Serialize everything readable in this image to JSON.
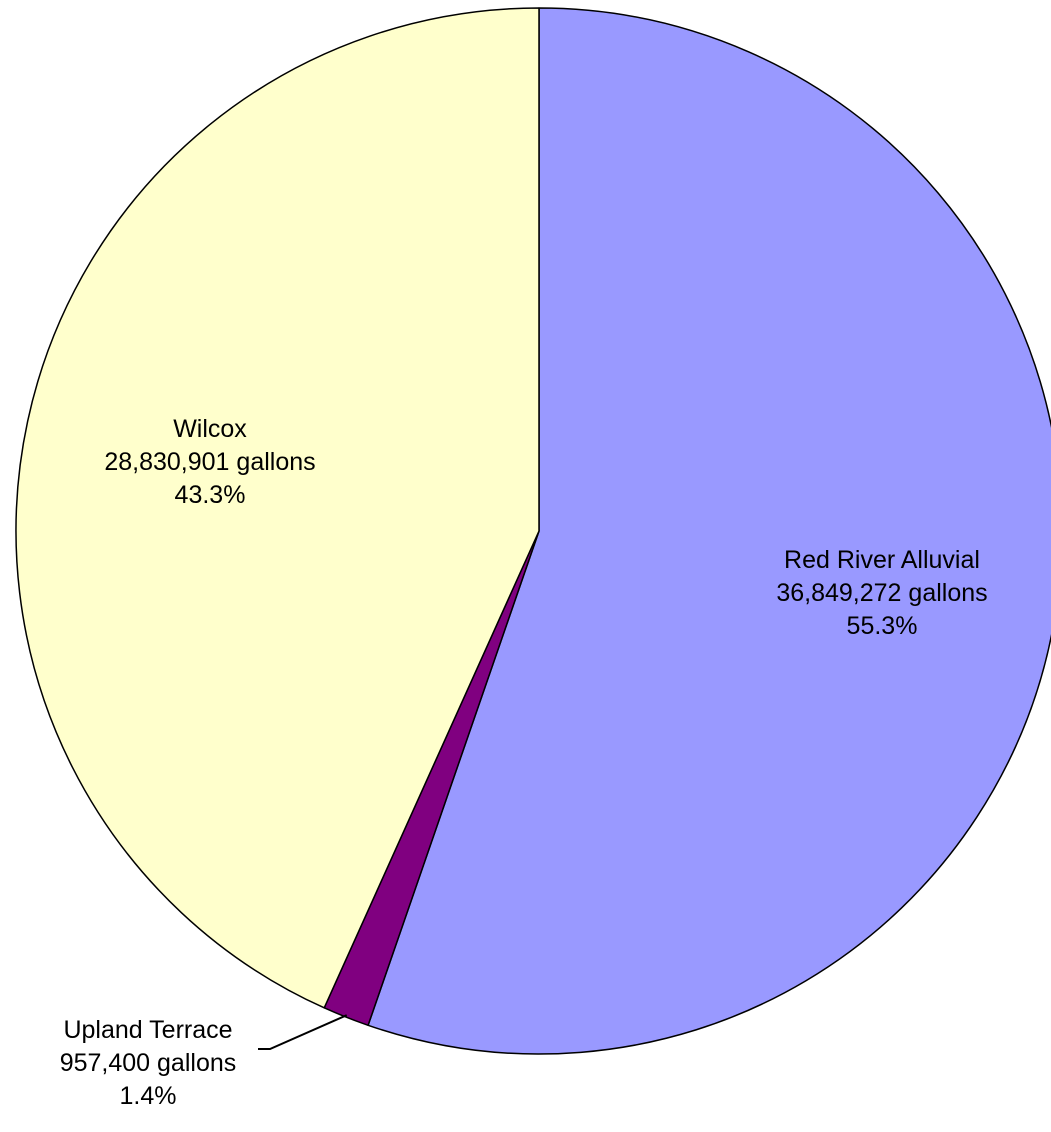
{
  "chart_data": {
    "type": "pie",
    "start_angle": "12 o'clock",
    "direction": "clockwise",
    "slices": [
      {
        "name": "Red River Alluvial",
        "value": 36849272,
        "value_label": "36,849,272 gallons",
        "percent_label": "55.3%",
        "color": "#9999ff"
      },
      {
        "name": "Upland Terrace",
        "value": 957400,
        "value_label": "957,400 gallons",
        "percent_label": "1.4%",
        "color": "#800080"
      },
      {
        "name": "Wilcox",
        "value": 28830901,
        "value_label": "28,830,901 gallons",
        "percent_label": "43.3%",
        "color": "#ffffcc"
      }
    ]
  }
}
